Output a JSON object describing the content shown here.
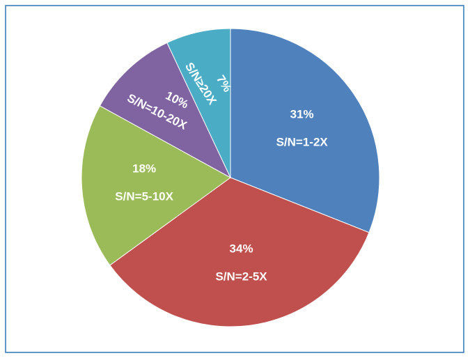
{
  "chart_data": {
    "type": "pie",
    "categories": [
      "S/N=1-2X",
      "S/N=2-5X",
      "S/N=5-10X",
      "S/N=10-20X",
      "S/N≥20X"
    ],
    "values": [
      31,
      34,
      18,
      10,
      7
    ],
    "value_labels": [
      "31%",
      "34%",
      "18%",
      "10%",
      "7%"
    ],
    "colors": [
      "#4f81bd",
      "#c0504d",
      "#9bbb59",
      "#8064a2",
      "#4bacc6"
    ]
  }
}
